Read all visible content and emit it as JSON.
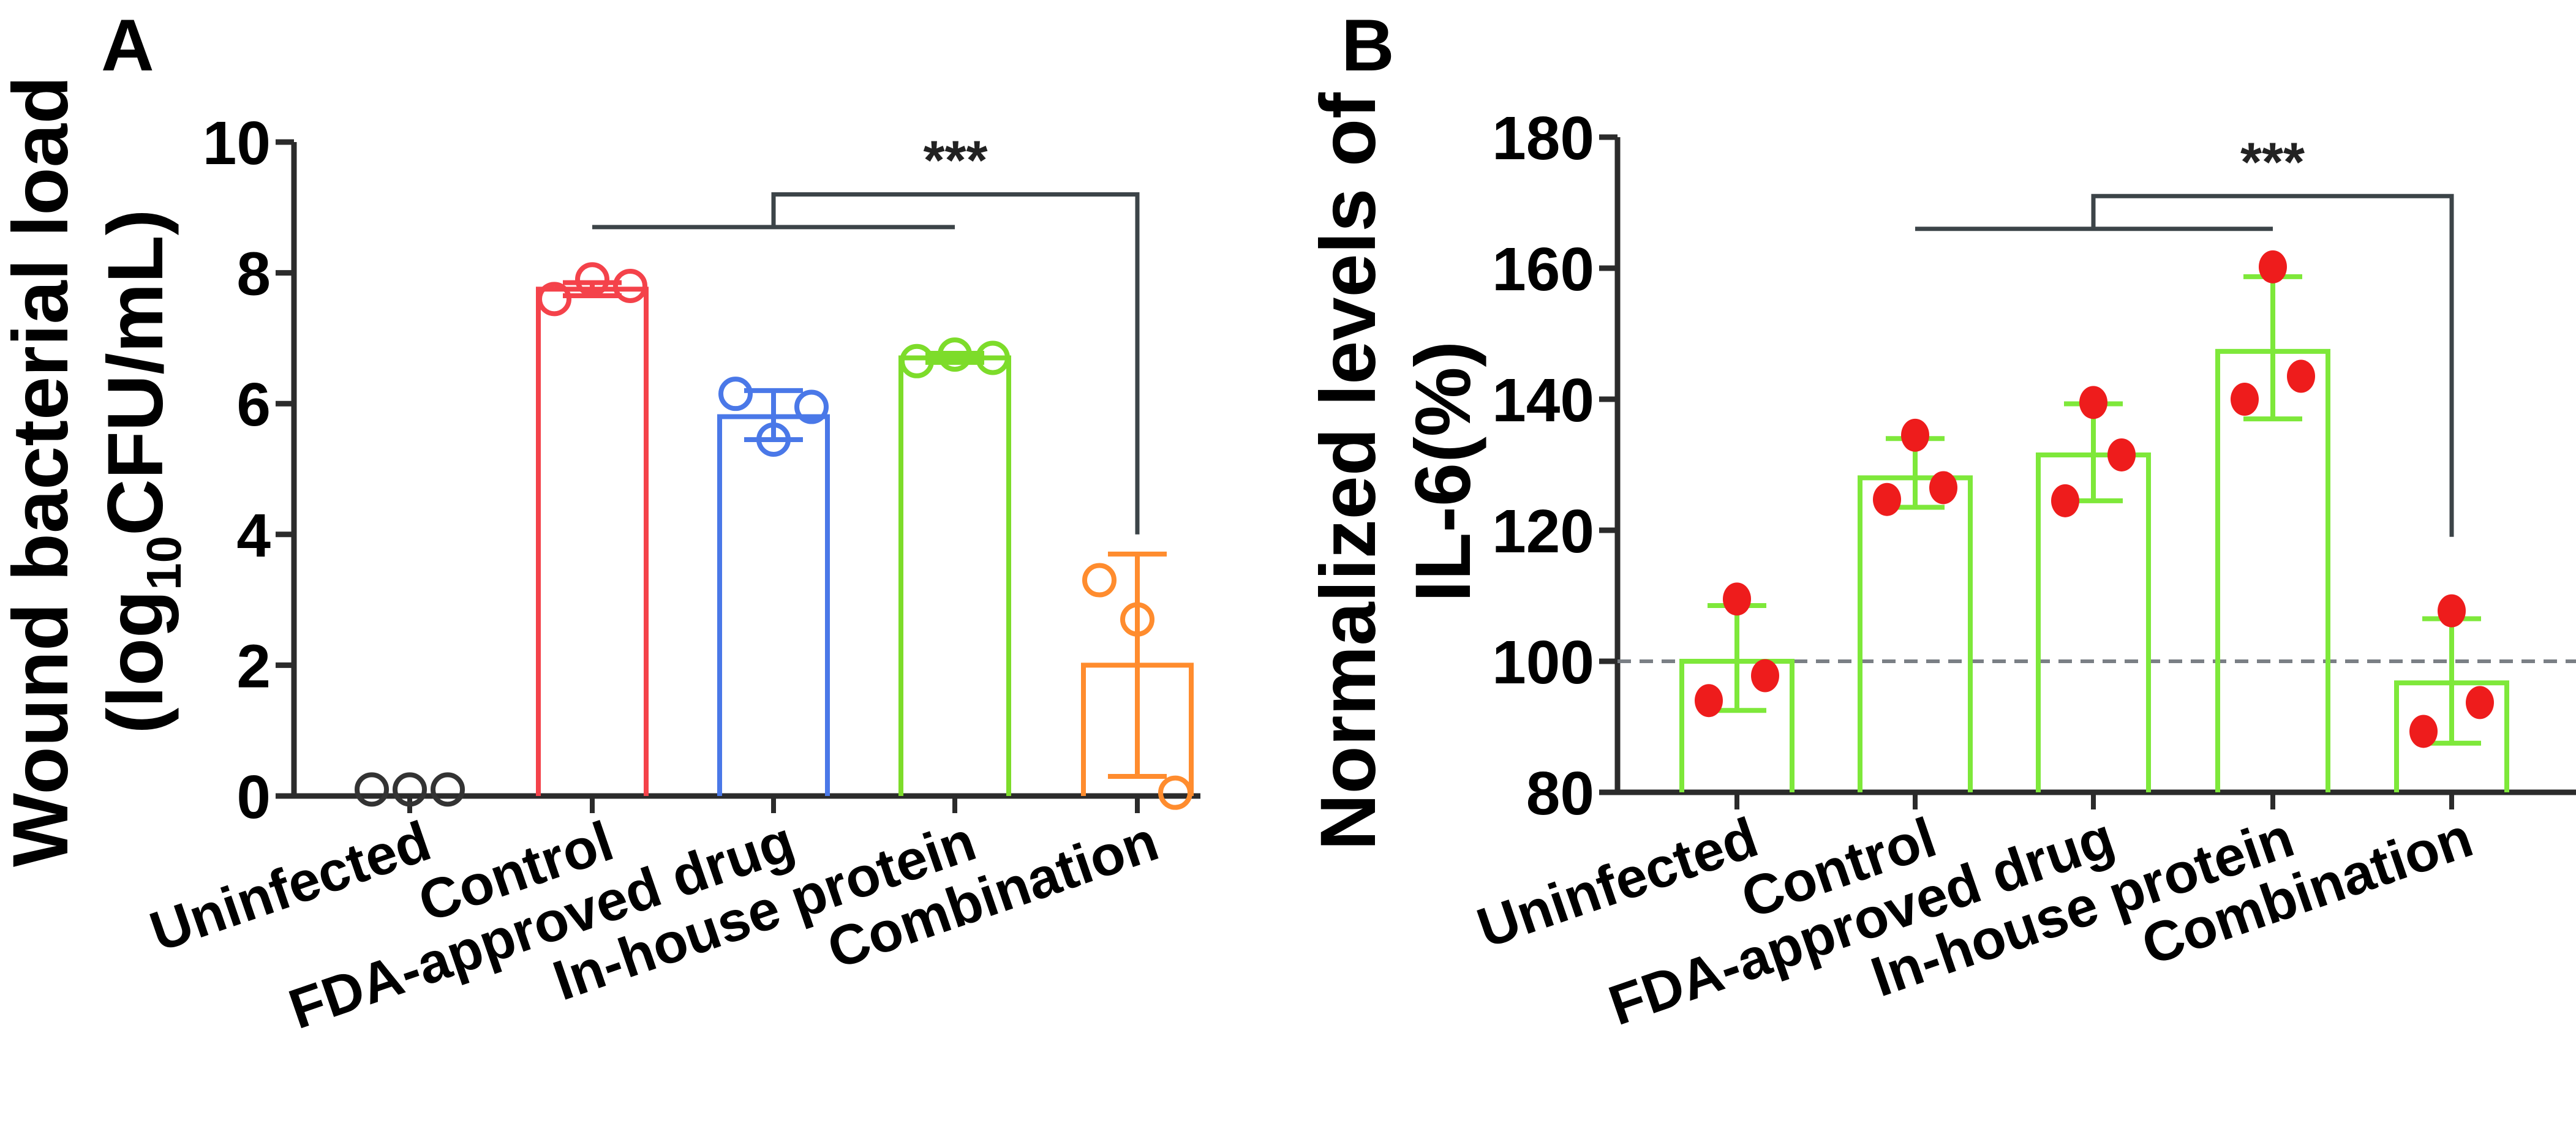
{
  "chart_data": [
    {
      "panel": "A",
      "type": "bar",
      "ylabel_line1": "Wound bacterial load",
      "ylabel_line2_prefix": "(log",
      "ylabel_line2_sub": "10",
      "ylabel_line2_suffix": "CFU/mL)",
      "ylim": [
        0,
        10
      ],
      "yticks": [
        0,
        2,
        4,
        6,
        8,
        10
      ],
      "categories": [
        "Uninfected",
        "Control",
        "FDA-approved drug",
        "In-house protein",
        "Combination"
      ],
      "colors": [
        "#333333",
        "#f4424a",
        "#4a78e8",
        "#7ddc2a",
        "#ff8c2e"
      ],
      "marker": "open-circle",
      "values": [
        0.0,
        7.75,
        5.8,
        6.7,
        2.0
      ],
      "error_low": [
        0.0,
        7.65,
        5.45,
        6.63,
        0.3
      ],
      "error_high": [
        0.0,
        7.85,
        6.2,
        6.77,
        3.7
      ],
      "points": [
        [
          0.1,
          0.1,
          0.1
        ],
        [
          7.6,
          7.9,
          7.8
        ],
        [
          6.15,
          5.45,
          5.95
        ],
        [
          6.65,
          6.75,
          6.7
        ],
        [
          3.3,
          2.7,
          0.05
        ]
      ],
      "significance": {
        "label": "***",
        "group_from": 1,
        "group_to": 3,
        "target": 4,
        "group_line_y": 8.7,
        "top_y": 9.2,
        "target_end_y": 4.0
      }
    },
    {
      "panel": "B",
      "type": "bar",
      "ylabel_line1": "Normalized levels of",
      "ylabel_line2": "IL-6(%)",
      "ylim": [
        80,
        180
      ],
      "yticks": [
        80,
        100,
        120,
        140,
        160,
        180
      ],
      "categories": [
        "Uninfected",
        "Control",
        "FDA-approved drug",
        "In-house protein",
        "Combination"
      ],
      "bar_color": "#7ee83a",
      "point_color": "#ee1c1c",
      "marker": "filled-circle",
      "reference_line": 100,
      "values": [
        100,
        128,
        131.5,
        147.3,
        96.7
      ],
      "error_low": [
        92.5,
        123.5,
        124.5,
        137,
        87.5
      ],
      "error_high": [
        108.5,
        134,
        139.3,
        158.7,
        106.5
      ],
      "points": [
        [
          94,
          109.5,
          97.8
        ],
        [
          124.7,
          134.5,
          126.5
        ],
        [
          124.5,
          139.5,
          131.5
        ],
        [
          140,
          160.2,
          143.5
        ],
        [
          89.3,
          107.7,
          93.7
        ]
      ],
      "significance": {
        "label": "***",
        "group_from": 1,
        "group_to": 3,
        "target": 4,
        "group_line_y": 166,
        "top_y": 171,
        "target_end_y": 119
      }
    }
  ]
}
